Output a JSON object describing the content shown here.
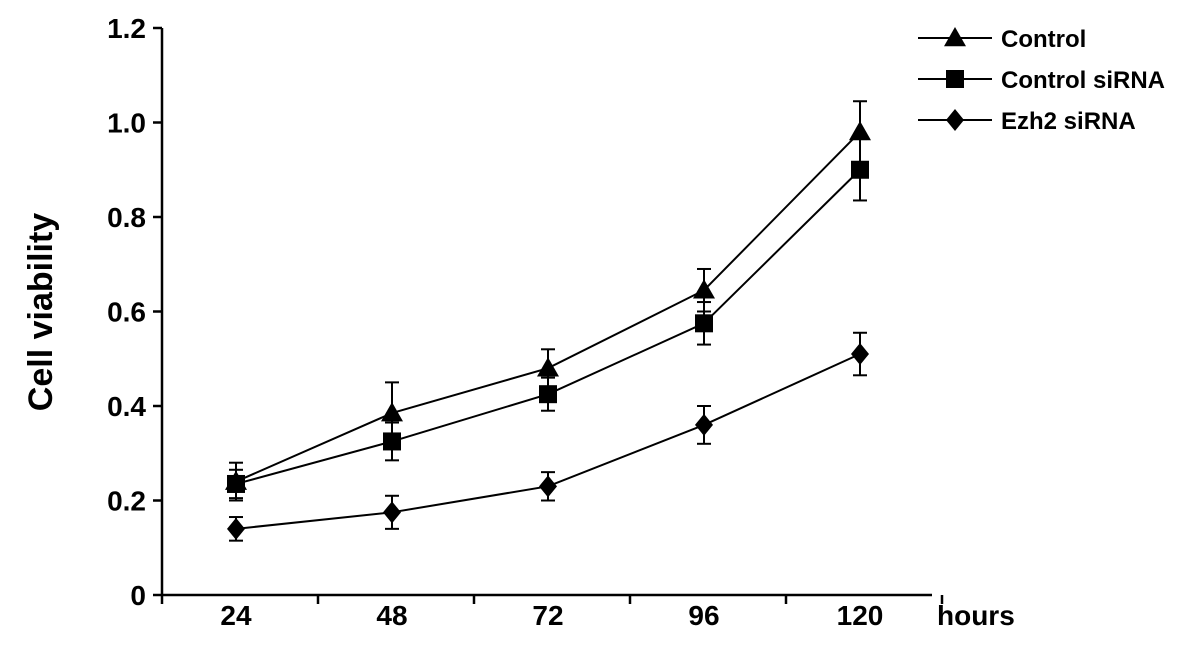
{
  "chart_data": {
    "type": "line",
    "title": "",
    "xlabel": "hours",
    "ylabel": "Cell viability",
    "x": [
      24,
      48,
      72,
      96,
      120
    ],
    "x_tick_labels": [
      "24",
      "48",
      "72",
      "96",
      "120"
    ],
    "ylim": [
      0,
      1.2
    ],
    "y_ticks": [
      0,
      0.2,
      0.4,
      0.6,
      0.8,
      1.0,
      1.2
    ],
    "y_tick_labels": [
      "0",
      "0.2",
      "0.4",
      "0.6",
      "0.8",
      "1.0",
      "1.2"
    ],
    "grid": false,
    "legend_position": "top-right",
    "series": [
      {
        "name": "Control",
        "marker": "triangle",
        "color": "#000000",
        "values": [
          0.24,
          0.385,
          0.48,
          0.645,
          0.98
        ],
        "errors": [
          0.04,
          0.065,
          0.04,
          0.045,
          0.065
        ]
      },
      {
        "name": "Control siRNA",
        "marker": "square",
        "color": "#000000",
        "values": [
          0.235,
          0.325,
          0.425,
          0.575,
          0.9
        ],
        "errors": [
          0.03,
          0.04,
          0.035,
          0.045,
          0.065
        ]
      },
      {
        "name": "Ezh2 siRNA",
        "marker": "diamond",
        "color": "#000000",
        "values": [
          0.14,
          0.175,
          0.23,
          0.36,
          0.51
        ],
        "errors": [
          0.025,
          0.035,
          0.03,
          0.04,
          0.045
        ]
      }
    ]
  }
}
